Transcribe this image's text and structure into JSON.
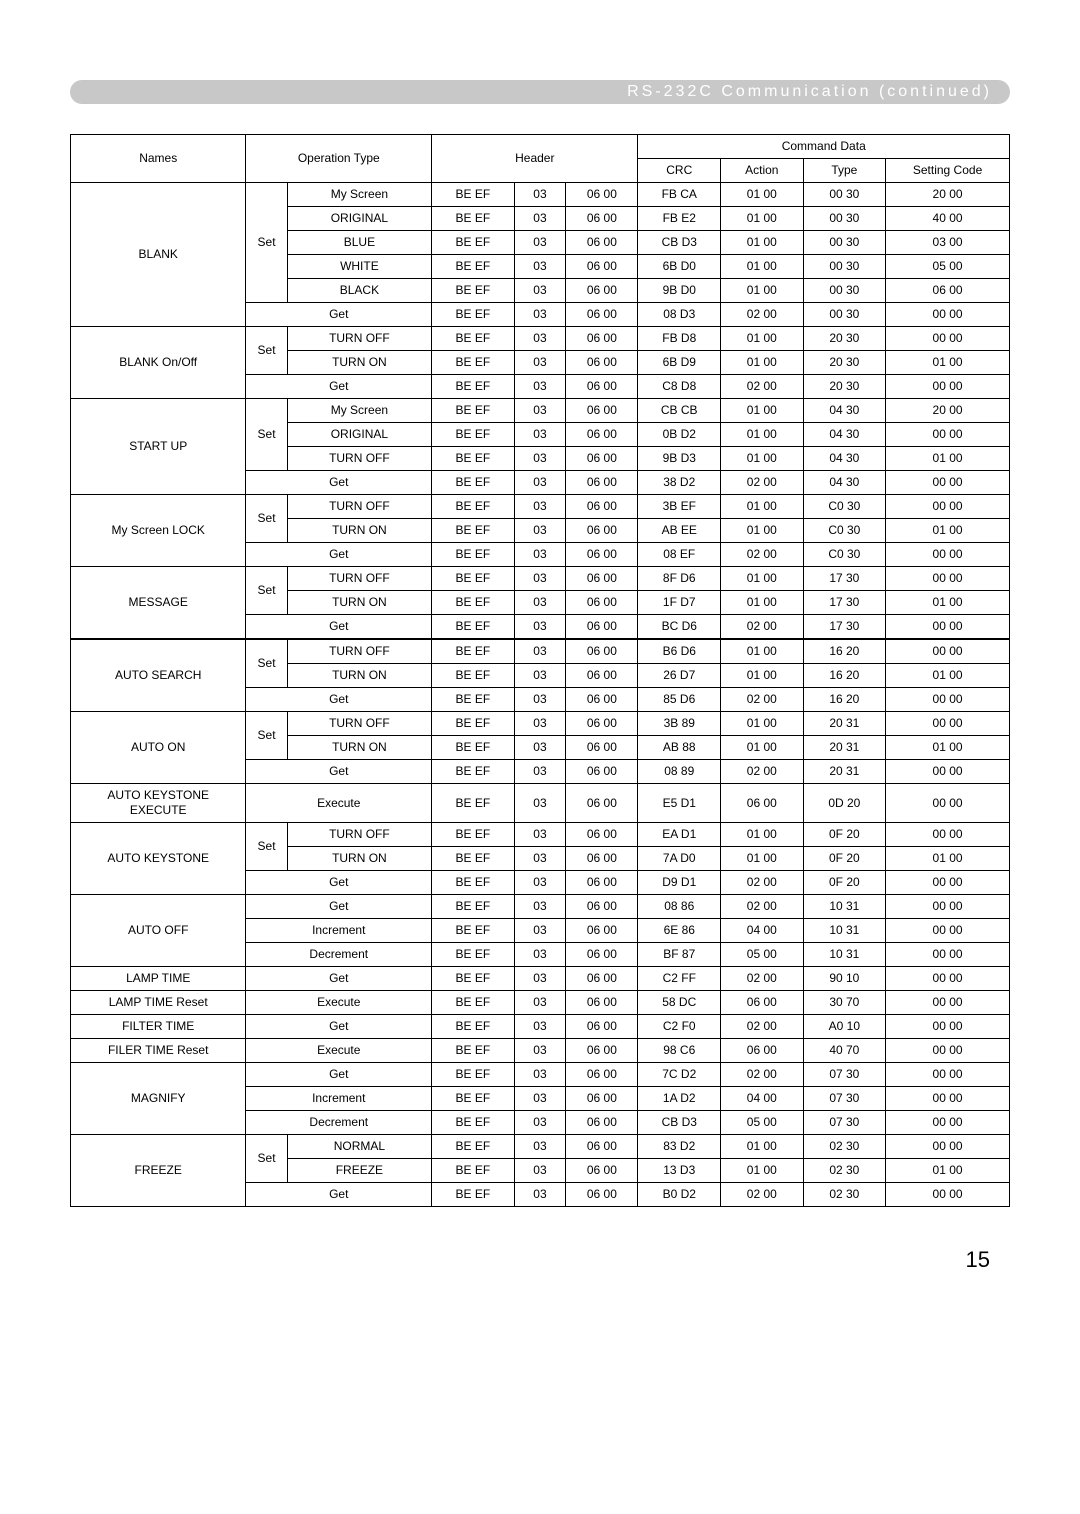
{
  "banner": {
    "title": "RS-232C Communication (continued)"
  },
  "page_number": "15",
  "headers": {
    "names": "Names",
    "operation_type": "Operation Type",
    "header": "Header",
    "command_data": "Command Data",
    "crc": "CRC",
    "action": "Action",
    "type": "Type",
    "setting_code": "Setting Code"
  },
  "rows": [
    {
      "name": "BLANK",
      "set": "Set",
      "opt": "My Screen",
      "h1": "BE  EF",
      "h2": "03",
      "h3": "06  00",
      "crc": "FB  CA",
      "act": "01  00",
      "typ": "00  30",
      "sc": "20  00"
    },
    {
      "name": "",
      "set": "",
      "opt": "ORIGINAL",
      "h1": "BE  EF",
      "h2": "03",
      "h3": "06  00",
      "crc": "FB  E2",
      "act": "01  00",
      "typ": "00  30",
      "sc": "40  00"
    },
    {
      "name": "",
      "set": "",
      "opt": "BLUE",
      "h1": "BE  EF",
      "h2": "03",
      "h3": "06  00",
      "crc": "CB  D3",
      "act": "01  00",
      "typ": "00  30",
      "sc": "03  00"
    },
    {
      "name": "",
      "set": "",
      "opt": "WHITE",
      "h1": "BE  EF",
      "h2": "03",
      "h3": "06  00",
      "crc": "6B  D0",
      "act": "01  00",
      "typ": "00  30",
      "sc": "05  00"
    },
    {
      "name": "",
      "set": "",
      "opt": "BLACK",
      "h1": "BE  EF",
      "h2": "03",
      "h3": "06  00",
      "crc": "9B  D0",
      "act": "01  00",
      "typ": "00  30",
      "sc": "06  00"
    },
    {
      "name": "",
      "set": "GETSPAN",
      "opt": "Get",
      "h1": "BE  EF",
      "h2": "03",
      "h3": "06  00",
      "crc": "08  D3",
      "act": "02  00",
      "typ": "00  30",
      "sc": "00  00"
    },
    {
      "name": "BLANK On/Off",
      "set": "Set",
      "opt": "TURN OFF",
      "h1": "BE  EF",
      "h2": "03",
      "h3": "06  00",
      "crc": "FB  D8",
      "act": "01  00",
      "typ": "20  30",
      "sc": "00  00"
    },
    {
      "name": "",
      "set": "",
      "opt": "TURN ON",
      "h1": "BE  EF",
      "h2": "03",
      "h3": "06  00",
      "crc": "6B  D9",
      "act": "01  00",
      "typ": "20  30",
      "sc": "01  00"
    },
    {
      "name": "",
      "set": "GETSPAN",
      "opt": "Get",
      "h1": "BE  EF",
      "h2": "03",
      "h3": "06  00",
      "crc": "C8  D8",
      "act": "02  00",
      "typ": "20  30",
      "sc": "00  00"
    },
    {
      "name": "START UP",
      "set": "Set",
      "opt": "My Screen",
      "h1": "BE  EF",
      "h2": "03",
      "h3": "06  00",
      "crc": "CB  CB",
      "act": "01  00",
      "typ": "04  30",
      "sc": "20  00"
    },
    {
      "name": "",
      "set": "",
      "opt": "ORIGINAL",
      "h1": "BE  EF",
      "h2": "03",
      "h3": "06  00",
      "crc": "0B  D2",
      "act": "01  00",
      "typ": "04  30",
      "sc": "00  00"
    },
    {
      "name": "",
      "set": "",
      "opt": "TURN OFF",
      "h1": "BE  EF",
      "h2": "03",
      "h3": "06  00",
      "crc": "9B  D3",
      "act": "01  00",
      "typ": "04  30",
      "sc": "01  00"
    },
    {
      "name": "",
      "set": "GETSPAN",
      "opt": "Get",
      "h1": "BE  EF",
      "h2": "03",
      "h3": "06  00",
      "crc": "38  D2",
      "act": "02  00",
      "typ": "04  30",
      "sc": "00  00"
    },
    {
      "name": "My Screen LOCK",
      "set": "Set",
      "opt": "TURN OFF",
      "h1": "BE  EF",
      "h2": "03",
      "h3": "06  00",
      "crc": "3B  EF",
      "act": "01  00",
      "typ": "C0  30",
      "sc": "00  00"
    },
    {
      "name": "",
      "set": "",
      "opt": "TURN ON",
      "h1": "BE  EF",
      "h2": "03",
      "h3": "06  00",
      "crc": "AB  EE",
      "act": "01  00",
      "typ": "C0  30",
      "sc": "01  00"
    },
    {
      "name": "",
      "set": "GETSPAN",
      "opt": "Get",
      "h1": "BE  EF",
      "h2": "03",
      "h3": "06  00",
      "crc": "08  EF",
      "act": "02  00",
      "typ": "C0  30",
      "sc": "00  00"
    },
    {
      "name": "MESSAGE",
      "set": "Set",
      "opt": "TURN OFF",
      "h1": "BE  EF",
      "h2": "03",
      "h3": "06  00",
      "crc": "8F  D6",
      "act": "01  00",
      "typ": "17  30",
      "sc": "00  00"
    },
    {
      "name": "",
      "set": "",
      "opt": "TURN ON",
      "h1": "BE  EF",
      "h2": "03",
      "h3": "06  00",
      "crc": "1F  D7",
      "act": "01  00",
      "typ": "17  30",
      "sc": "01  00"
    },
    {
      "name": "",
      "set": "GETSPAN",
      "opt": "Get",
      "h1": "BE  EF",
      "h2": "03",
      "h3": "06  00",
      "crc": "BC  D6",
      "act": "02  00",
      "typ": "17  30",
      "sc": "00  00",
      "thick": true
    },
    {
      "name": "AUTO SEARCH",
      "set": "Set",
      "opt": "TURN OFF",
      "h1": "BE  EF",
      "h2": "03",
      "h3": "06  00",
      "crc": "B6  D6",
      "act": "01  00",
      "typ": "16  20",
      "sc": "00  00"
    },
    {
      "name": "",
      "set": "",
      "opt": "TURN ON",
      "h1": "BE  EF",
      "h2": "03",
      "h3": "06  00",
      "crc": "26  D7",
      "act": "01  00",
      "typ": "16  20",
      "sc": "01  00"
    },
    {
      "name": "",
      "set": "GETSPAN",
      "opt": "Get",
      "h1": "BE  EF",
      "h2": "03",
      "h3": "06  00",
      "crc": "85 D6",
      "act": "02 00",
      "typ": "16 20",
      "sc": "00 00"
    },
    {
      "name": "AUTO ON",
      "set": "Set",
      "opt": "TURN OFF",
      "h1": "BE  EF",
      "h2": "03",
      "h3": "06  00",
      "crc": "3B 89",
      "act": "01 00",
      "typ": "20 31",
      "sc": "00 00"
    },
    {
      "name": "",
      "set": "",
      "opt": "TURN ON",
      "h1": "BE  EF",
      "h2": "03",
      "h3": "06  00",
      "crc": "AB 88",
      "act": "01 00",
      "typ": "20 31",
      "sc": "01 00"
    },
    {
      "name": "",
      "set": "GETSPAN",
      "opt": "Get",
      "h1": "BE  EF",
      "h2": "03",
      "h3": "06  00",
      "crc": "08 89",
      "act": "02 00",
      "typ": "20 31",
      "sc": "00 00"
    },
    {
      "name": "AUTO KEYSTONE EXECUTE",
      "set": "EXECSPAN",
      "opt": "Execute",
      "h1": "BE  EF",
      "h2": "03",
      "h3": "06  00",
      "crc": "E5 D1",
      "act": "06 00",
      "typ": "0D 20",
      "sc": "00 00"
    },
    {
      "name": "AUTO KEYSTONE",
      "set": "Set",
      "opt": "TURN OFF",
      "h1": "BE  EF",
      "h2": "03",
      "h3": "06  00",
      "crc": "EA D1",
      "act": "01 00",
      "typ": "0F 20",
      "sc": "00 00"
    },
    {
      "name": "",
      "set": "",
      "opt": "TURN ON",
      "h1": "BE  EF",
      "h2": "03",
      "h3": "06  00",
      "crc": "7A D0",
      "act": "01 00",
      "typ": "0F 20",
      "sc": "01 00"
    },
    {
      "name": "",
      "set": "GETSPAN",
      "opt": "Get",
      "h1": "BE  EF",
      "h2": "03",
      "h3": "06  00",
      "crc": "D9 D1",
      "act": "02 00",
      "typ": "0F 20",
      "sc": "00 00"
    },
    {
      "name": "AUTO OFF",
      "set": "GETSPAN",
      "opt": "Get",
      "h1": "BE  EF",
      "h2": "03",
      "h3": "06  00",
      "crc": "08  86",
      "act": "02  00",
      "typ": "10  31",
      "sc": "00  00"
    },
    {
      "name": "",
      "set": "GETSPAN",
      "opt": "Increment",
      "h1": "BE  EF",
      "h2": "03",
      "h3": "06  00",
      "crc": "6E  86",
      "act": "04  00",
      "typ": "10  31",
      "sc": "00  00"
    },
    {
      "name": "",
      "set": "GETSPAN",
      "opt": "Decrement",
      "h1": "BE  EF",
      "h2": "03",
      "h3": "06  00",
      "crc": "BF  87",
      "act": "05  00",
      "typ": "10  31",
      "sc": "00  00"
    },
    {
      "name": "LAMP TIME",
      "set": "GETSPAN",
      "opt": "Get",
      "h1": "BE  EF",
      "h2": "03",
      "h3": "06  00",
      "crc": "C2  FF",
      "act": "02  00",
      "typ": "90  10",
      "sc": "00  00"
    },
    {
      "name": "LAMP TIME Reset",
      "set": "GETSPAN",
      "opt": "Execute",
      "h1": "BE  EF",
      "h2": "03",
      "h3": "06  00",
      "crc": "58  DC",
      "act": "06  00",
      "typ": "30  70",
      "sc": "00  00"
    },
    {
      "name": "FILTER TIME",
      "set": "GETSPAN",
      "opt": "Get",
      "h1": "BE  EF",
      "h2": "03",
      "h3": "06  00",
      "crc": "C2  F0",
      "act": "02  00",
      "typ": "A0  10",
      "sc": "00  00"
    },
    {
      "name": "FILER TIME Reset",
      "set": "GETSPAN",
      "opt": "Execute",
      "h1": "BE  EF",
      "h2": "03",
      "h3": "06  00",
      "crc": "98  C6",
      "act": "06  00",
      "typ": "40  70",
      "sc": "00  00"
    },
    {
      "name": "MAGNIFY",
      "set": "GETSPAN",
      "opt": "Get",
      "h1": "BE  EF",
      "h2": "03",
      "h3": "06  00",
      "crc": "7C  D2",
      "act": "02  00",
      "typ": "07  30",
      "sc": "00  00"
    },
    {
      "name": "",
      "set": "GETSPAN",
      "opt": "Increment",
      "h1": "BE  EF",
      "h2": "03",
      "h3": "06  00",
      "crc": "1A  D2",
      "act": "04  00",
      "typ": "07  30",
      "sc": "00  00"
    },
    {
      "name": "",
      "set": "GETSPAN",
      "opt": "Decrement",
      "h1": "BE  EF",
      "h2": "03",
      "h3": "06  00",
      "crc": "CB  D3",
      "act": "05  00",
      "typ": "07  30",
      "sc": "00  00"
    },
    {
      "name": "FREEZE",
      "set": "Set",
      "opt": "NORMAL",
      "h1": "BE  EF",
      "h2": "03",
      "h3": "06  00",
      "crc": "83  D2",
      "act": "01  00",
      "typ": "02  30",
      "sc": "00  00"
    },
    {
      "name": "",
      "set": "",
      "opt": "FREEZE",
      "h1": "BE  EF",
      "h2": "03",
      "h3": "06  00",
      "crc": "13  D3",
      "act": "01  00",
      "typ": "02  30",
      "sc": "01  00"
    },
    {
      "name": "",
      "set": "GETSPAN",
      "opt": "Get",
      "h1": "BE  EF",
      "h2": "03",
      "h3": "06  00",
      "crc": "B0  D2",
      "act": "02  00",
      "typ": "02  30",
      "sc": "00  00"
    }
  ],
  "style": {
    "banner_bg": "#c8c8c8",
    "banner_text_color": "#ffffff",
    "border_color": "#000000",
    "font_main": "Arial",
    "font_size_table": 12,
    "font_size_banner": 16,
    "font_size_pagenum": 22
  }
}
